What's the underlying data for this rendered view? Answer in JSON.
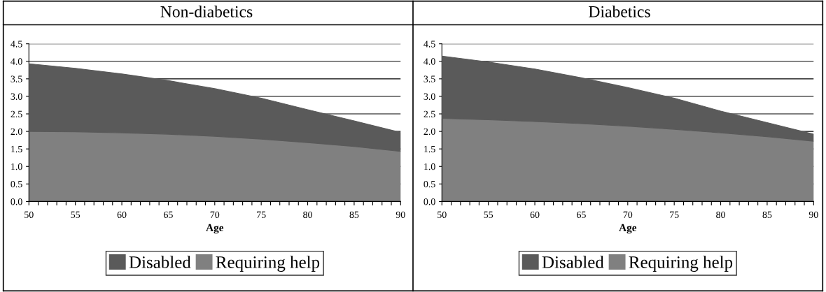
{
  "chart_data": [
    {
      "type": "area",
      "stacked": true,
      "title": "Non-diabetics",
      "xlabel": "Age",
      "x": [
        50,
        55,
        60,
        65,
        70,
        75,
        80,
        85,
        90
      ],
      "series": [
        {
          "name": "Requiring help",
          "color": "#808080",
          "values": [
            2.0,
            1.99,
            1.96,
            1.92,
            1.86,
            1.78,
            1.68,
            1.57,
            1.43
          ]
        },
        {
          "name": "Disabled",
          "color": "#5a5a5a",
          "values": [
            1.93,
            1.81,
            1.68,
            1.53,
            1.36,
            1.17,
            0.94,
            0.73,
            0.54
          ]
        }
      ],
      "xlim": [
        50,
        90
      ],
      "ylim": [
        0,
        4.5
      ],
      "xticks": [
        50,
        {
          "value": 51,
          "label": null
        },
        {
          "value": 52,
          "label": null
        },
        {
          "value": 53,
          "label": null
        },
        {
          "value": 54,
          "label": null
        },
        55,
        {
          "value": 56,
          "label": null
        },
        {
          "value": 57,
          "label": null
        },
        {
          "value": 58,
          "label": null
        },
        {
          "value": 59,
          "label": null
        },
        60,
        {
          "value": 61,
          "label": null
        },
        {
          "value": 62,
          "label": null
        },
        {
          "value": 63,
          "label": null
        },
        {
          "value": 64,
          "label": null
        },
        65,
        {
          "value": 66,
          "label": null
        },
        {
          "value": 67,
          "label": null
        },
        {
          "value": 68,
          "label": null
        },
        {
          "value": 69,
          "label": null
        },
        70,
        {
          "value": 71,
          "label": null
        },
        {
          "value": 72,
          "label": null
        },
        {
          "value": 73,
          "label": null
        },
        {
          "value": 74,
          "label": null
        },
        75,
        {
          "value": 76,
          "label": null
        },
        {
          "value": 77,
          "label": null
        },
        {
          "value": 78,
          "label": null
        },
        {
          "value": 79,
          "label": null
        },
        80,
        {
          "value": 81,
          "label": null
        },
        {
          "value": 82,
          "label": null
        },
        {
          "value": 83,
          "label": null
        },
        {
          "value": 84,
          "label": null
        },
        85,
        {
          "value": 86,
          "label": null
        },
        {
          "value": 87,
          "label": null
        },
        {
          "value": 88,
          "label": null
        },
        {
          "value": 89,
          "label": null
        },
        90
      ],
      "yticks": [
        {
          "value": 0,
          "label": "0.0"
        },
        0.5,
        {
          "value": 1,
          "label": "1.0"
        },
        1.5,
        {
          "value": 2,
          "label": "2.0"
        },
        2.5,
        {
          "value": 3,
          "label": "3.0"
        },
        3.5,
        {
          "value": 4,
          "label": "4.0"
        },
        4.5
      ],
      "grid": "y",
      "legend": "bottom"
    },
    {
      "type": "area",
      "stacked": true,
      "title": "Diabetics",
      "xlabel": "Age",
      "x": [
        50,
        55,
        60,
        65,
        70,
        75,
        80,
        85,
        90
      ],
      "series": [
        {
          "name": "Requiring help",
          "color": "#808080",
          "values": [
            2.37,
            2.33,
            2.28,
            2.22,
            2.15,
            2.06,
            1.96,
            1.85,
            1.72
          ]
        },
        {
          "name": "Disabled",
          "color": "#5a5a5a",
          "values": [
            1.78,
            1.65,
            1.5,
            1.31,
            1.1,
            0.89,
            0.62,
            0.4,
            0.2
          ]
        }
      ],
      "xlim": [
        50,
        90
      ],
      "ylim": [
        0,
        4.5
      ],
      "xticks": [
        50,
        {
          "value": 51,
          "label": null
        },
        {
          "value": 52,
          "label": null
        },
        {
          "value": 53,
          "label": null
        },
        {
          "value": 54,
          "label": null
        },
        55,
        {
          "value": 56,
          "label": null
        },
        {
          "value": 57,
          "label": null
        },
        {
          "value": 58,
          "label": null
        },
        {
          "value": 59,
          "label": null
        },
        60,
        {
          "value": 61,
          "label": null
        },
        {
          "value": 62,
          "label": null
        },
        {
          "value": 63,
          "label": null
        },
        {
          "value": 64,
          "label": null
        },
        65,
        {
          "value": 66,
          "label": null
        },
        {
          "value": 67,
          "label": null
        },
        {
          "value": 68,
          "label": null
        },
        {
          "value": 69,
          "label": null
        },
        70,
        {
          "value": 71,
          "label": null
        },
        {
          "value": 72,
          "label": null
        },
        {
          "value": 73,
          "label": null
        },
        {
          "value": 74,
          "label": null
        },
        75,
        {
          "value": 76,
          "label": null
        },
        {
          "value": 77,
          "label": null
        },
        {
          "value": 78,
          "label": null
        },
        {
          "value": 79,
          "label": null
        },
        80,
        {
          "value": 81,
          "label": null
        },
        {
          "value": 82,
          "label": null
        },
        {
          "value": 83,
          "label": null
        },
        {
          "value": 84,
          "label": null
        },
        85,
        {
          "value": 86,
          "label": null
        },
        {
          "value": 87,
          "label": null
        },
        {
          "value": 88,
          "label": null
        },
        {
          "value": 89,
          "label": null
        },
        90
      ],
      "yticks": [
        {
          "value": 0,
          "label": "0.0"
        },
        0.5,
        {
          "value": 1,
          "label": "1.0"
        },
        1.5,
        {
          "value": 2,
          "label": "2.0"
        },
        2.5,
        {
          "value": 3,
          "label": "3.0"
        },
        3.5,
        {
          "value": 4,
          "label": "4.0"
        },
        4.5
      ],
      "grid": "y",
      "legend": "bottom"
    }
  ]
}
